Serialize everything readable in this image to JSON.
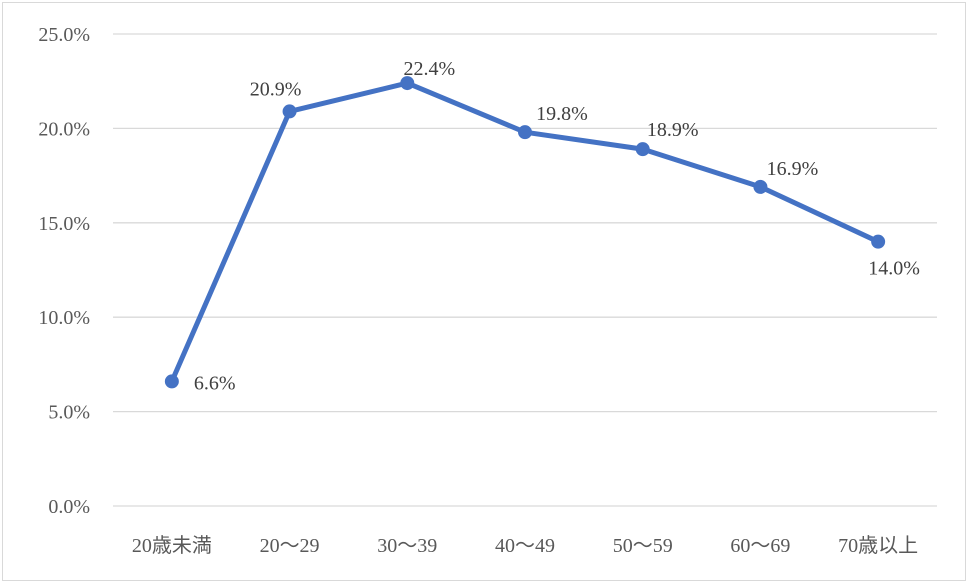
{
  "chart_data": {
    "type": "line",
    "title": "",
    "xlabel": "",
    "ylabel": "",
    "categories": [
      "20歳未満",
      "20～29",
      "30～39",
      "40～49",
      "50～59",
      "60～69",
      "70歳以上"
    ],
    "series": [
      {
        "values": [
          6.6,
          20.9,
          22.4,
          19.8,
          18.9,
          16.9,
          14.0
        ],
        "data_labels": [
          "6.6%",
          "20.9%",
          "22.4%",
          "19.8%",
          "18.9%",
          "16.9%",
          "14.0%"
        ],
        "color": "#4472c4"
      }
    ],
    "ylim": [
      0,
      25
    ],
    "yticks": [
      0,
      5,
      10,
      15,
      20,
      25
    ],
    "ytick_labels": [
      "0.0%",
      "5.0%",
      "10.0%",
      "15.0%",
      "20.0%",
      "25.0%"
    ],
    "grid": true,
    "legend": "none",
    "colors": {
      "line": "#4472c4",
      "grid": "#d9d9d9",
      "tick_text": "#595959"
    }
  }
}
